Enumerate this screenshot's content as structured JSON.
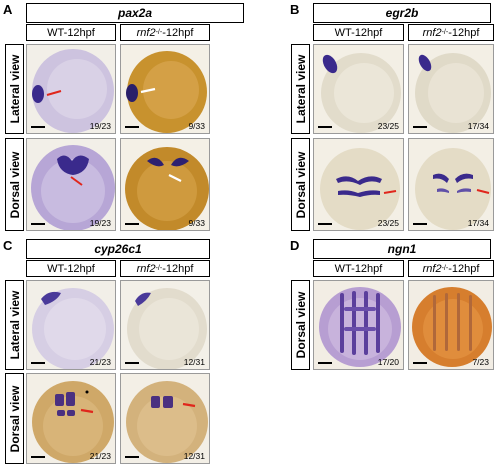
{
  "figure": {
    "panels": [
      {
        "letter": "A",
        "gene": "pax2a",
        "cond_wt": "WT-12hpf",
        "cond_mut_gene": "rnf2",
        "cond_mut_sup": "-/-",
        "cond_mut_suffix": "-12hpf",
        "view_lateral": "Lateral view",
        "view_dorsal": "Dorsal view",
        "counts": [
          "19/23",
          "9/33",
          "19/23",
          "9/33"
        ]
      },
      {
        "letter": "B",
        "gene": "egr2b",
        "cond_wt": "WT-12hpf",
        "cond_mut_gene": "rnf2",
        "cond_mut_sup": "-/-",
        "cond_mut_suffix": "-12hpf",
        "view_lateral": "Lateral view",
        "view_dorsal": "Dorsal view",
        "counts": [
          "23/25",
          "17/34",
          "23/25",
          "17/34"
        ]
      },
      {
        "letter": "C",
        "gene": "cyp26c1",
        "cond_wt": "WT-12hpf",
        "cond_mut_gene": "rnf2",
        "cond_mut_sup": "-/-",
        "cond_mut_suffix": "-12hpf",
        "view_lateral": "Lateral view",
        "view_dorsal": "Dorsal view",
        "counts": [
          "21/23",
          "12/31",
          "21/23",
          "12/31"
        ]
      },
      {
        "letter": "D",
        "gene": "ngn1",
        "cond_wt": "WT-12hpf",
        "cond_mut_gene": "rnf2",
        "cond_mut_sup": "-/-",
        "cond_mut_suffix": "-12hpf",
        "view_dorsal": "Dorsal view",
        "counts": [
          "17/20",
          "7/23"
        ]
      }
    ],
    "colors": {
      "stain": "#3a2a8c",
      "embryo_wt": "#c9c0dc",
      "embryo_mut": "#c8922e",
      "arrow_red": "#e0261c",
      "arrow_white": "#ffffff"
    }
  }
}
